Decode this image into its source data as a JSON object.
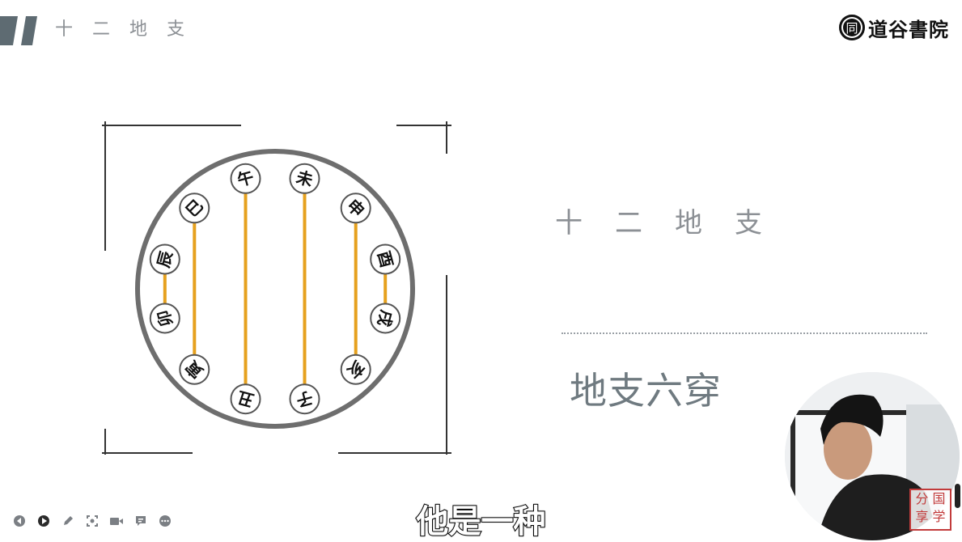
{
  "header": {
    "title": "十二地支"
  },
  "logo": {
    "seal": "同",
    "text": "道谷書院"
  },
  "diagram": {
    "branches": [
      "午",
      "未",
      "申",
      "酉",
      "戌",
      "亥",
      "子",
      "丑",
      "寅",
      "卯",
      "辰",
      "巳"
    ],
    "pairs": [
      [
        "巳",
        "寅"
      ],
      [
        "午",
        "丑"
      ],
      [
        "未",
        "子"
      ],
      [
        "申",
        "亥"
      ],
      [
        "酉",
        "戌"
      ],
      [
        "辰",
        "卯"
      ]
    ],
    "colors": {
      "ring": "#6e6e6e",
      "line": "#e6a11e",
      "node": "#555555"
    }
  },
  "right": {
    "title": "十二地支",
    "section_title": "地支六穿"
  },
  "webcam": {
    "stamp": [
      "分",
      "国",
      "享",
      "学"
    ]
  },
  "subtitle": "他是一种",
  "controls": [
    "prev-icon",
    "play-icon",
    "pen-icon",
    "screenshot-icon",
    "camera-icon",
    "comment-icon",
    "more-icon"
  ]
}
